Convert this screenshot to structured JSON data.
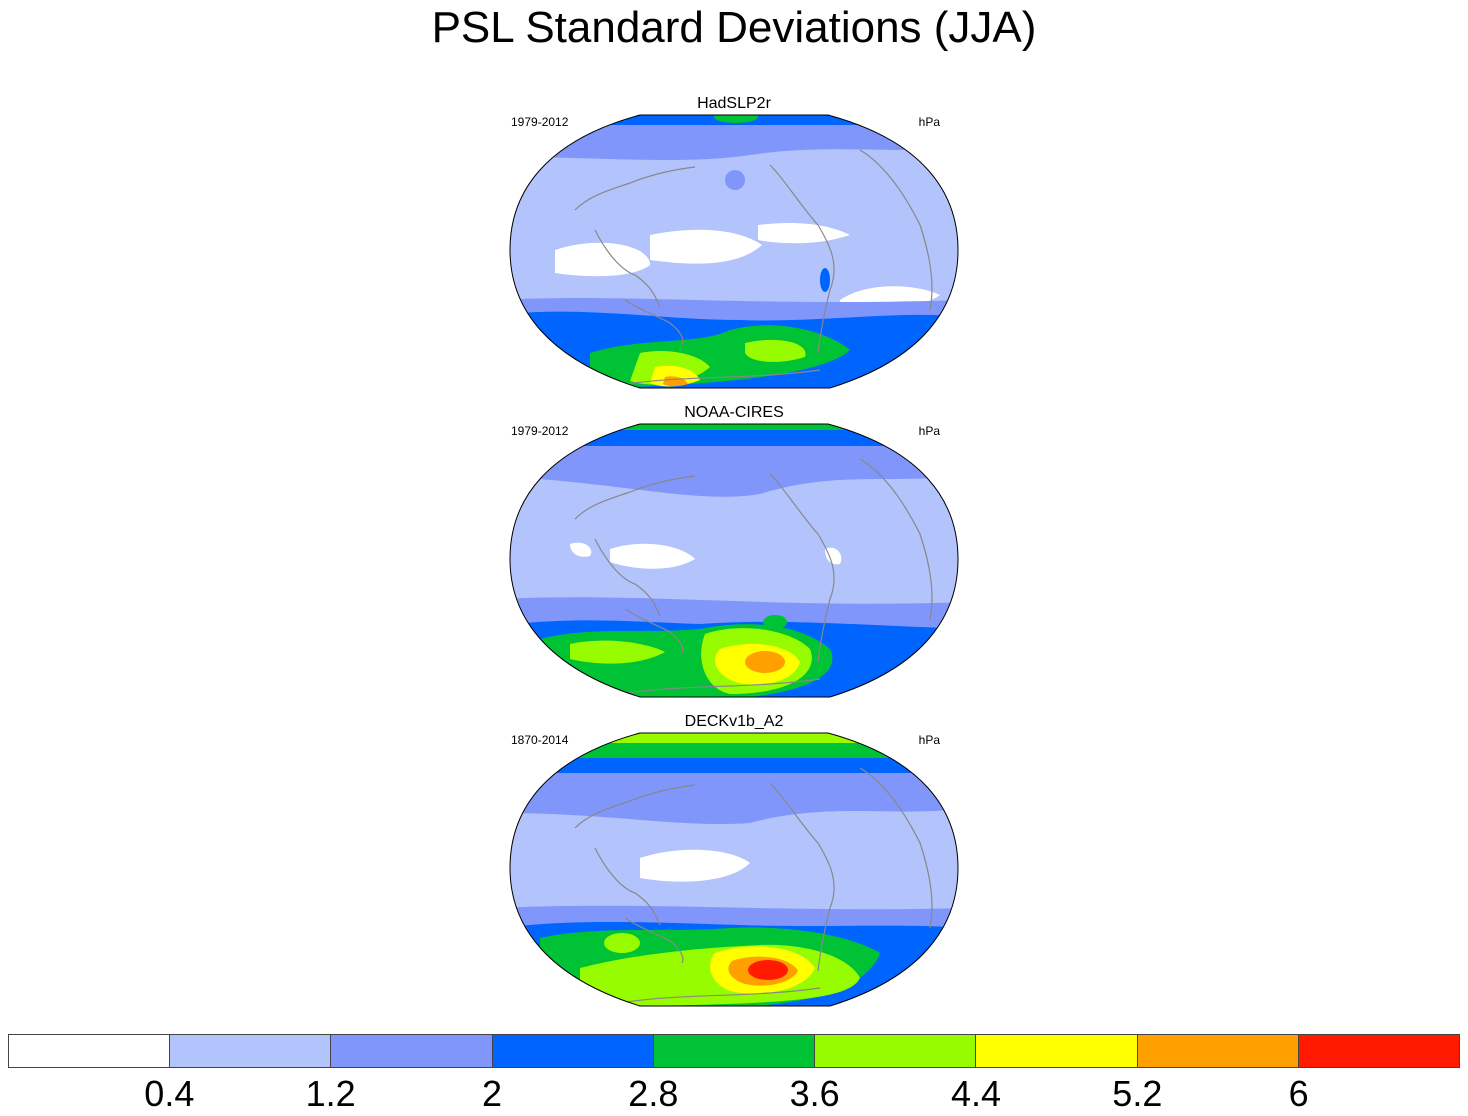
{
  "title": "PSL Standard Deviations (JJA)",
  "panels": [
    {
      "name": "HadSLP2r",
      "period": "1979-2012",
      "units": "hPa"
    },
    {
      "name": "NOAA-CIRES",
      "period": "1979-2012",
      "units": "hPa"
    },
    {
      "name": "DECKv1b_A2",
      "period": "1870-2014",
      "units": "hPa"
    }
  ],
  "colorbar": {
    "colors": [
      "#ffffff",
      "#b3c3fb",
      "#8196fb",
      "#0064ff",
      "#00c235",
      "#98fc00",
      "#ffff00",
      "#ffa000",
      "#ff1a00"
    ],
    "labels": [
      "0.4",
      "1.2",
      "2",
      "2.8",
      "3.6",
      "4.4",
      "5.2",
      "6"
    ]
  }
}
